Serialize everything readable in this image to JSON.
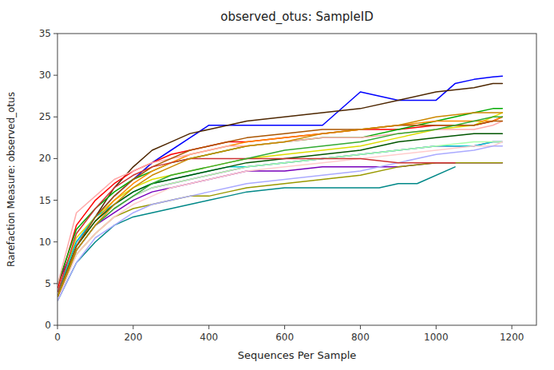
{
  "chart_data": {
    "type": "line",
    "title": "observed_otus: SampleID",
    "x_label": "Sequences Per Sample",
    "y_label": "Rarefaction Measure: observed_otus",
    "xlim": [
      0,
      1265
    ],
    "ylim": [
      0,
      35
    ],
    "xticks": [
      0,
      200,
      400,
      600,
      800,
      1000,
      1200
    ],
    "yticks": [
      0,
      5,
      10,
      15,
      20,
      25,
      30,
      35
    ],
    "grid": false,
    "series": [
      {
        "color": "#0000ff",
        "x": [
          1,
          50,
          100,
          150,
          200,
          250,
          300,
          350,
          400,
          450,
          500,
          600,
          700,
          800,
          850,
          900,
          950,
          1000,
          1050,
          1100,
          1150,
          1175
        ],
        "values": [
          5.0,
          10.0,
          13.0,
          15.5,
          17.5,
          19.5,
          21.0,
          22.5,
          24.0,
          24.0,
          24.0,
          24.0,
          24.0,
          28.0,
          27.5,
          27.0,
          27.0,
          27.0,
          29.0,
          29.5,
          29.8,
          29.9
        ]
      },
      {
        "color": "#4d2600",
        "x": [
          1,
          50,
          100,
          150,
          200,
          250,
          300,
          350,
          400,
          450,
          500,
          600,
          700,
          800,
          900,
          1000,
          1100,
          1150,
          1175
        ],
        "values": [
          4.0,
          9.5,
          13.0,
          16.5,
          19.0,
          21.0,
          22.0,
          23.0,
          23.5,
          24.0,
          24.5,
          25.0,
          25.5,
          26.0,
          27.0,
          28.0,
          28.5,
          29.0,
          29.0
        ]
      },
      {
        "color": "#ff0000",
        "x": [
          1,
          50,
          100,
          150,
          200,
          250,
          300,
          350,
          400,
          450,
          500,
          600,
          700,
          800,
          900,
          1000,
          1100,
          1150,
          1175
        ],
        "values": [
          4.5,
          12.0,
          15.0,
          17.0,
          18.5,
          19.5,
          20.5,
          21.0,
          21.5,
          22.0,
          22.0,
          22.5,
          23.0,
          23.5,
          23.5,
          24.0,
          24.0,
          24.5,
          25.0
        ]
      },
      {
        "color": "#00aa00",
        "x": [
          1,
          50,
          100,
          150,
          200,
          250,
          300,
          350,
          400,
          450,
          500,
          600,
          700,
          800,
          900,
          1000,
          1100,
          1150,
          1175
        ],
        "values": [
          5.0,
          11.5,
          14.0,
          16.0,
          17.5,
          18.5,
          19.5,
          20.0,
          20.5,
          21.0,
          21.5,
          22.0,
          22.5,
          22.5,
          23.5,
          24.5,
          25.5,
          26.0,
          26.0
        ]
      },
      {
        "color": "#dddd00",
        "x": [
          1,
          50,
          100,
          150,
          200,
          250,
          300,
          350,
          400,
          450,
          500,
          600,
          700,
          800,
          900,
          1000,
          1100,
          1150,
          1175
        ],
        "values": [
          4.0,
          10.5,
          13.0,
          15.0,
          16.5,
          17.5,
          18.0,
          18.5,
          19.0,
          19.5,
          20.0,
          20.5,
          21.0,
          21.5,
          22.5,
          23.5,
          24.0,
          25.0,
          25.5
        ]
      },
      {
        "color": "#cc00cc",
        "x": [
          1,
          50,
          100,
          150,
          200,
          250,
          300,
          350,
          400,
          450,
          500,
          600,
          700,
          800,
          900,
          1000,
          1100,
          1150,
          1175
        ],
        "values": [
          3.5,
          9.0,
          12.0,
          14.0,
          15.5,
          16.5,
          17.0,
          17.5,
          18.0,
          18.5,
          19.0,
          19.5,
          20.0,
          20.5,
          21.0,
          21.5,
          21.5,
          22.0,
          22.0
        ]
      },
      {
        "color": "#00cccc",
        "x": [
          1,
          50,
          100,
          150,
          200,
          250,
          300,
          350,
          400,
          450,
          500,
          600,
          700,
          800,
          900,
          1000,
          1100,
          1150,
          1175
        ],
        "values": [
          4.0,
          10.0,
          13.0,
          14.5,
          16.0,
          17.0,
          17.5,
          18.0,
          18.5,
          19.0,
          19.0,
          19.5,
          20.0,
          20.5,
          21.0,
          21.5,
          21.5,
          22.0,
          22.0
        ]
      },
      {
        "color": "#ff8800",
        "x": [
          1,
          50,
          100,
          150,
          200,
          250,
          300,
          350,
          400,
          450,
          500,
          600,
          700,
          800,
          900,
          1000,
          1100,
          1150,
          1175
        ],
        "values": [
          3.5,
          9.5,
          12.5,
          15.0,
          17.0,
          18.5,
          19.5,
          20.5,
          21.0,
          21.5,
          22.0,
          22.5,
          23.0,
          23.5,
          24.0,
          24.5,
          24.5,
          24.5,
          25.0
        ]
      },
      {
        "color": "#7700bb",
        "x": [
          1,
          50,
          100,
          150,
          200,
          250,
          300,
          350,
          400,
          450,
          500,
          600,
          700,
          800,
          900,
          1000,
          1100,
          1150,
          1175
        ],
        "values": [
          3.5,
          9.0,
          12.0,
          13.5,
          15.0,
          16.0,
          16.5,
          17.0,
          17.5,
          18.0,
          18.5,
          18.5,
          19.0,
          19.0,
          19.0,
          19.5,
          19.5,
          19.5,
          19.5
        ]
      },
      {
        "color": "#ffaaaa",
        "x": [
          1,
          50,
          100,
          150,
          200,
          250,
          300,
          350,
          400,
          450,
          500,
          600,
          700,
          800,
          900,
          1000,
          1100,
          1150,
          1175
        ],
        "values": [
          5.0,
          13.5,
          15.5,
          17.5,
          18.5,
          19.5,
          20.0,
          20.5,
          21.0,
          21.5,
          21.5,
          22.0,
          22.5,
          22.5,
          23.0,
          23.5,
          23.5,
          24.0,
          24.5
        ]
      },
      {
        "color": "#aaffaa",
        "x": [
          1,
          50,
          100,
          150,
          200,
          250,
          300,
          350,
          400,
          450,
          500,
          600,
          700,
          800,
          900,
          1000,
          1100,
          1150,
          1175
        ],
        "values": [
          3.5,
          9.0,
          12.0,
          14.0,
          15.5,
          16.5,
          17.0,
          17.5,
          18.0,
          18.5,
          19.0,
          19.5,
          20.0,
          20.5,
          21.0,
          21.5,
          22.0,
          22.0,
          22.0
        ]
      },
      {
        "color": "#005500",
        "x": [
          1,
          50,
          100,
          150,
          200,
          250,
          300,
          350,
          400,
          450,
          500,
          600,
          700,
          800,
          900,
          1000,
          1100,
          1150,
          1175
        ],
        "values": [
          3.5,
          9.5,
          12.5,
          14.5,
          16.0,
          17.0,
          17.5,
          18.0,
          18.5,
          19.0,
          19.5,
          20.0,
          20.5,
          21.0,
          22.0,
          22.5,
          23.0,
          23.0,
          23.0
        ]
      },
      {
        "color": "#999900",
        "x": [
          1,
          50,
          100,
          150,
          200,
          250,
          300,
          350,
          400,
          450,
          500,
          600,
          700,
          800,
          900,
          1000,
          1100,
          1150,
          1175
        ],
        "values": [
          3.5,
          8.5,
          11.0,
          13.0,
          14.0,
          14.5,
          15.0,
          15.5,
          15.5,
          16.0,
          16.5,
          17.0,
          17.5,
          18.0,
          19.0,
          19.5,
          19.5,
          19.5,
          19.5
        ]
      },
      {
        "color": "#008888",
        "x": [
          1,
          50,
          100,
          150,
          200,
          250,
          300,
          350,
          400,
          450,
          500,
          600,
          700,
          800,
          850,
          900,
          950,
          1050
        ],
        "values": [
          3.0,
          7.5,
          10.0,
          12.0,
          13.0,
          13.5,
          14.0,
          14.5,
          15.0,
          15.5,
          16.0,
          16.5,
          16.5,
          16.5,
          16.5,
          17.0,
          17.0,
          19.0
        ]
      },
      {
        "color": "#aa5500",
        "x": [
          1,
          50,
          100,
          150,
          200,
          250,
          300,
          350,
          400,
          450,
          500,
          600,
          700,
          800,
          900,
          1000,
          1100,
          1150,
          1175
        ],
        "values": [
          3.5,
          9.5,
          13.0,
          15.5,
          17.5,
          19.0,
          20.0,
          21.0,
          21.5,
          22.0,
          22.5,
          23.0,
          23.5,
          23.5,
          24.0,
          24.0,
          24.0,
          24.5,
          24.5
        ]
      },
      {
        "color": "#ffcccc",
        "x": [
          1,
          50,
          100,
          150,
          200,
          250,
          300,
          350,
          400,
          450,
          500,
          600,
          700,
          800,
          900,
          1000,
          1100,
          1150,
          1175
        ],
        "values": [
          3.0,
          8.5,
          11.0,
          13.0,
          14.5,
          15.5,
          16.5,
          17.0,
          17.5,
          18.0,
          18.5,
          19.0,
          19.5,
          20.0,
          20.5,
          21.0,
          21.5,
          21.5,
          22.0
        ]
      },
      {
        "color": "#aaaaff",
        "x": [
          1,
          50,
          100,
          150,
          200,
          250,
          300,
          350,
          400,
          450,
          500,
          600,
          700,
          800,
          900,
          1000,
          1100,
          1150,
          1175
        ],
        "values": [
          3.0,
          7.5,
          10.5,
          12.0,
          13.5,
          14.5,
          15.0,
          15.5,
          16.0,
          16.5,
          17.0,
          17.5,
          18.0,
          18.5,
          19.5,
          20.5,
          21.0,
          21.5,
          21.5
        ]
      },
      {
        "color": "#cc3333",
        "x": [
          1,
          50,
          100,
          150,
          200,
          250,
          300,
          350,
          400,
          450,
          500,
          600,
          700,
          800,
          900,
          950,
          1000,
          1050
        ],
        "values": [
          4.0,
          11.0,
          14.0,
          16.5,
          18.0,
          19.0,
          19.5,
          20.0,
          20.0,
          20.0,
          20.0,
          20.0,
          20.0,
          20.0,
          19.5,
          19.5,
          19.5,
          19.5
        ]
      },
      {
        "color": "#33aa33",
        "x": [
          1,
          50,
          100,
          150,
          200,
          250,
          300,
          350,
          400,
          450,
          500,
          600,
          700,
          800,
          900,
          1000,
          1100,
          1150,
          1175
        ],
        "values": [
          3.5,
          9.0,
          12.0,
          14.0,
          15.5,
          17.0,
          18.0,
          18.5,
          19.0,
          19.5,
          20.0,
          21.0,
          21.5,
          22.0,
          23.0,
          23.5,
          24.5,
          25.0,
          25.0
        ]
      },
      {
        "color": "#cc8800",
        "x": [
          1,
          50,
          100,
          150,
          200,
          250,
          300,
          350,
          400,
          450,
          500,
          600,
          700,
          800,
          900,
          1000,
          1100,
          1150,
          1175
        ],
        "values": [
          3.5,
          9.0,
          12.0,
          14.5,
          16.5,
          18.0,
          19.0,
          20.0,
          20.5,
          21.0,
          21.5,
          22.0,
          23.0,
          23.5,
          24.0,
          25.0,
          25.5,
          25.5,
          25.5
        ]
      }
    ]
  }
}
